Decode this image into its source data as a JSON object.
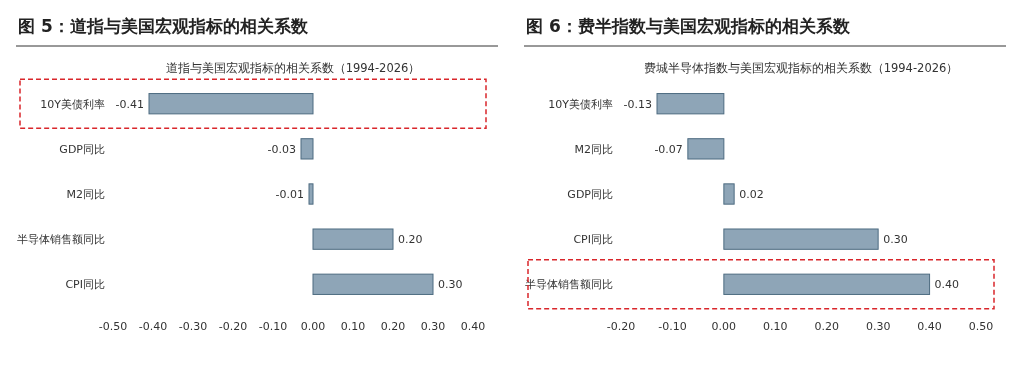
{
  "chart_data": [
    {
      "type": "bar",
      "orientation": "horizontal",
      "title": "图 5：道指与美国宏观指标的相关系数",
      "subtitle": "道指与美国宏观指标的相关系数（1994-2026）",
      "categories": [
        "10Y美债利率",
        "GDP同比",
        "M2同比",
        "半导体销售额同比",
        "CPI同比"
      ],
      "values": [
        -0.41,
        -0.03,
        -0.01,
        0.2,
        0.3
      ],
      "value_labels": [
        "-0.41",
        "-0.03",
        "-0.01",
        "0.20",
        "0.30"
      ],
      "color": "#8ea5b7",
      "xlim": [
        -0.5,
        0.4
      ],
      "xticks": [
        {
          "value": -0.5,
          "label": "-0.50"
        },
        {
          "value": -0.4,
          "label": "-0.40"
        },
        {
          "value": -0.3,
          "label": "-0.30"
        },
        {
          "value": -0.2,
          "label": "-0.20"
        },
        {
          "value": -0.1,
          "label": "-0.10"
        },
        {
          "value": 0,
          "label": "0.00"
        },
        {
          "value": 0.1,
          "label": "0.10"
        },
        {
          "value": 0.2,
          "label": "0.20"
        },
        {
          "value": 0.3,
          "label": "0.30"
        },
        {
          "value": 0.4,
          "label": "0.40"
        }
      ],
      "grid": false
    },
    {
      "type": "bar",
      "orientation": "horizontal",
      "title": "图 6：费半指数与美国宏观指标的相关系数",
      "subtitle": "费城半导体指数与美国宏观指标的相关系数（1994-2026）",
      "categories": [
        "10Y美债利率",
        "M2同比",
        "GDP同比",
        "CPI同比",
        "半导体销售额同比"
      ],
      "values": [
        -0.13,
        -0.07,
        0.02,
        0.3,
        0.4
      ],
      "value_labels": [
        "-0.13",
        "-0.07",
        "0.02",
        "0.30",
        "0.40"
      ],
      "color": "#8ea5b7",
      "xlim": [
        -0.2,
        0.5
      ],
      "xticks": [
        {
          "value": -0.2,
          "label": "-0.20"
        },
        {
          "value": -0.1,
          "label": "-0.10"
        },
        {
          "value": 0,
          "label": "0.00"
        },
        {
          "value": 0.1,
          "label": "0.10"
        },
        {
          "value": 0.2,
          "label": "0.20"
        },
        {
          "value": 0.3,
          "label": "0.30"
        },
        {
          "value": 0.4,
          "label": "0.40"
        },
        {
          "value": 0.5,
          "label": "0.50"
        }
      ],
      "grid": false
    }
  ]
}
